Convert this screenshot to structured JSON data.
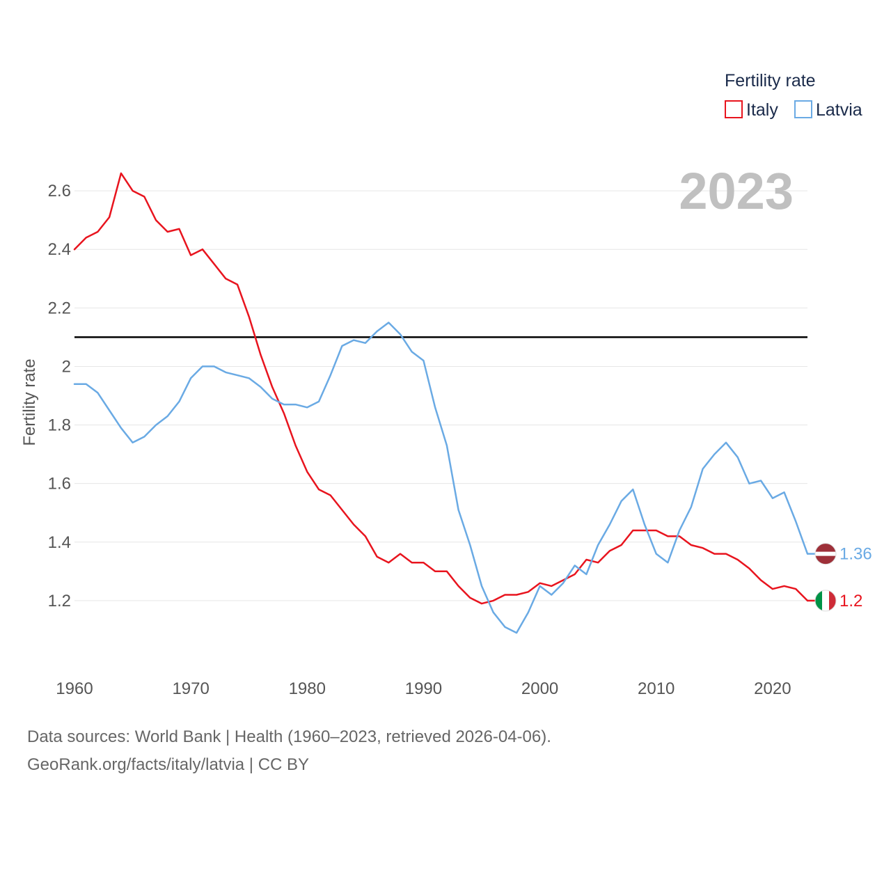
{
  "chart_data": {
    "type": "line",
    "title": "Fertility rate",
    "ylabel": "Fertility rate",
    "xlabel": "",
    "current_year": "2023",
    "xlim": [
      1960,
      2023
    ],
    "ylim": [
      1.0,
      2.8
    ],
    "x_ticks": [
      "1960",
      "1970",
      "1980",
      "1990",
      "2000",
      "2010",
      "2020"
    ],
    "y_ticks": [
      "1.2",
      "1.4",
      "1.6",
      "1.8",
      "2",
      "2.2",
      "2.4",
      "2.6"
    ],
    "y_tick_values": [
      1.2,
      1.4,
      1.6,
      1.8,
      2.0,
      2.2,
      2.4,
      2.6
    ],
    "reference_line": 2.1,
    "reference_line_color": "#000000",
    "legend_title": "Fertility rate",
    "legend_position": "top-right",
    "x": [
      1960,
      1961,
      1962,
      1963,
      1964,
      1965,
      1966,
      1967,
      1968,
      1969,
      1970,
      1971,
      1972,
      1973,
      1974,
      1975,
      1976,
      1977,
      1978,
      1979,
      1980,
      1981,
      1982,
      1983,
      1984,
      1985,
      1986,
      1987,
      1988,
      1989,
      1990,
      1991,
      1992,
      1993,
      1994,
      1995,
      1996,
      1997,
      1998,
      1999,
      2000,
      2001,
      2002,
      2003,
      2004,
      2005,
      2006,
      2007,
      2008,
      2009,
      2010,
      2011,
      2012,
      2013,
      2014,
      2015,
      2016,
      2017,
      2018,
      2019,
      2020,
      2021,
      2022,
      2023
    ],
    "series": [
      {
        "name": "Italy",
        "color": "#e8141e",
        "end_label": "1.2",
        "flag_icon": "italy-flag-icon",
        "values": [
          2.4,
          2.44,
          2.46,
          2.51,
          2.66,
          2.6,
          2.58,
          2.5,
          2.46,
          2.47,
          2.38,
          2.4,
          2.35,
          2.3,
          2.28,
          2.17,
          2.04,
          1.93,
          1.84,
          1.73,
          1.64,
          1.58,
          1.56,
          1.51,
          1.46,
          1.42,
          1.35,
          1.33,
          1.36,
          1.33,
          1.33,
          1.3,
          1.3,
          1.25,
          1.21,
          1.19,
          1.2,
          1.22,
          1.22,
          1.23,
          1.26,
          1.25,
          1.27,
          1.29,
          1.34,
          1.33,
          1.37,
          1.39,
          1.44,
          1.44,
          1.44,
          1.42,
          1.42,
          1.39,
          1.38,
          1.36,
          1.36,
          1.34,
          1.31,
          1.27,
          1.24,
          1.25,
          1.24,
          1.2
        ]
      },
      {
        "name": "Latvia",
        "color": "#6aaae4",
        "end_label": "1.36",
        "flag_icon": "latvia-flag-icon",
        "values": [
          1.94,
          1.94,
          1.91,
          1.85,
          1.79,
          1.74,
          1.76,
          1.8,
          1.83,
          1.88,
          1.96,
          2.0,
          2.0,
          1.98,
          1.97,
          1.96,
          1.93,
          1.89,
          1.87,
          1.87,
          1.86,
          1.88,
          1.97,
          2.07,
          2.09,
          2.08,
          2.12,
          2.15,
          2.11,
          2.05,
          2.02,
          1.86,
          1.73,
          1.51,
          1.39,
          1.25,
          1.16,
          1.11,
          1.09,
          1.16,
          1.25,
          1.22,
          1.26,
          1.32,
          1.29,
          1.39,
          1.46,
          1.54,
          1.58,
          1.46,
          1.36,
          1.33,
          1.44,
          1.52,
          1.65,
          1.7,
          1.74,
          1.69,
          1.6,
          1.61,
          1.55,
          1.57,
          1.47,
          1.36
        ]
      }
    ]
  },
  "footer": {
    "source_line1": "Data sources: World Bank | Health (1960–2023, retrieved 2026-04-06).",
    "source_line2": "GeoRank.org/facts/italy/latvia | CC BY"
  }
}
